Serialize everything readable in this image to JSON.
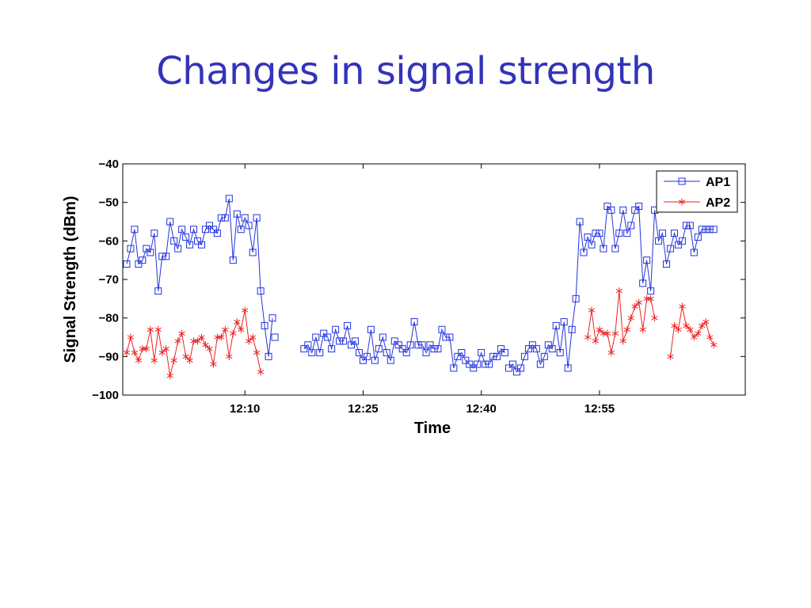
{
  "slide": {
    "title": "Changes in signal strength"
  },
  "chart_data": {
    "type": "line",
    "title": "",
    "xlabel": "Time",
    "ylabel": "Signal Strength (dBm)",
    "xlim": [
      0,
      79
    ],
    "ylim": [
      -100,
      -40
    ],
    "yticks": [
      -40,
      -50,
      -60,
      -70,
      -80,
      -90,
      -100
    ],
    "ytick_labels": [
      "−40",
      "−50",
      "−60",
      "−70",
      "−80",
      "−90",
      "−100"
    ],
    "xticks": [
      {
        "label": "12:10",
        "at": 15.5
      },
      {
        "label": "12:25",
        "at": 30.5
      },
      {
        "label": "12:40",
        "at": 45.5
      },
      {
        "label": "12:55",
        "at": 60.5
      }
    ],
    "grid": false,
    "legend": "top-right",
    "series": [
      {
        "name": "AP1",
        "color": "#2233dd",
        "marker": "square",
        "segments": [
          {
            "x": [
              0.5,
              1,
              1.5,
              2,
              2.5,
              3,
              3.5,
              4,
              4.5,
              5,
              5.5,
              6,
              6.5,
              7,
              7.5,
              8,
              8.5,
              9,
              9.5,
              10,
              10.5,
              11,
              11.5,
              12,
              12.5,
              13,
              13.5,
              14,
              14.5,
              15,
              15.5,
              16,
              16.5,
              17,
              17.5,
              18,
              18.5,
              19
            ],
            "y": [
              -66,
              -62,
              -57,
              -66,
              -65,
              -62,
              -63,
              -58,
              -73,
              -64,
              -64,
              -55,
              -60,
              -62,
              -57,
              -59,
              -61,
              -57,
              -60,
              -61,
              -57,
              -56,
              -57,
              -58,
              -54,
              -54,
              -49,
              -65,
              -53,
              -57,
              -54,
              -56,
              -63,
              -54,
              -73,
              -82,
              -90,
              -80
            ]
          },
          {
            "x": [
              19.3
            ],
            "y": [
              -85
            ]
          },
          {
            "x": [
              23,
              23.5,
              24,
              24.5,
              25,
              25.5,
              26,
              26.5,
              27,
              27.5,
              28,
              28.5,
              29,
              29.5,
              30,
              30.5,
              31,
              31.5,
              32,
              32.5,
              33,
              33.5,
              34,
              34.5,
              35,
              35.5,
              36,
              36.5,
              37,
              37.5,
              38,
              38.5,
              39,
              39.5,
              40,
              40.5,
              41,
              41.5,
              42,
              42.5,
              43,
              43.5,
              44,
              44.5,
              45,
              45.5,
              46,
              46.5,
              47,
              47.5,
              48,
              48.5
            ],
            "y": [
              -88,
              -87,
              -89,
              -85,
              -89,
              -84,
              -85,
              -88,
              -83,
              -86,
              -86,
              -82,
              -87,
              -86,
              -89,
              -91,
              -90,
              -83,
              -91,
              -88,
              -85,
              -89,
              -91,
              -86,
              -87,
              -88,
              -89,
              -87,
              -81,
              -87,
              -87,
              -89,
              -87,
              -88,
              -88,
              -83,
              -85,
              -85,
              -93,
              -90,
              -89,
              -91,
              -92,
              -93,
              -92,
              -89,
              -92,
              -92,
              -90,
              -90,
              -88,
              -89
            ]
          },
          {
            "x": [
              49,
              49.5,
              50,
              50.5,
              51,
              51.5,
              52,
              52.5,
              53,
              53.5,
              54,
              54.5,
              55,
              55.5,
              56,
              56.5,
              57,
              57.5,
              58,
              58.5,
              59,
              59.5,
              60,
              60.5,
              61,
              61.5,
              62,
              62.5,
              63,
              63.5,
              64,
              64.5,
              65,
              65.5,
              66,
              66.5,
              67,
              67.5,
              68,
              68.5,
              69,
              69.5,
              70,
              70.5,
              71,
              71.5,
              72,
              72.5,
              73,
              73.5,
              74,
              74.5,
              75
            ],
            "y": [
              -93,
              -92,
              -94,
              -93,
              -90,
              -88,
              -87,
              -88,
              -92,
              -90,
              -87,
              -88,
              -82,
              -89,
              -81,
              -93,
              -83,
              -75,
              -55,
              -63,
              -59,
              -61,
              -58,
              -58,
              -62,
              -51,
              -52,
              -62,
              -58,
              -52,
              -58,
              -56,
              -52,
              -51,
              -71,
              -65,
              -73,
              -52,
              -60,
              -58,
              -66,
              -62,
              -58,
              -61,
              -60,
              -56,
              -56,
              -63,
              -59,
              -57,
              -57,
              -57,
              -57
            ]
          }
        ]
      },
      {
        "name": "AP2",
        "color": "#ee2222",
        "marker": "star",
        "segments": [
          {
            "x": [
              0.5,
              1,
              1.5,
              2,
              2.5,
              3,
              3.5,
              4,
              4.5,
              5,
              5.5,
              6,
              6.5,
              7,
              7.5,
              8,
              8.5,
              9,
              9.5,
              10,
              10.5,
              11,
              11.5,
              12,
              12.5,
              13,
              13.5,
              14,
              14.5,
              15,
              15.5,
              16,
              16.5,
              17,
              17.5
            ],
            "y": [
              -89,
              -85,
              -89,
              -91,
              -88,
              -88,
              -83,
              -91,
              -83,
              -89,
              -88,
              -95,
              -91,
              -86,
              -84,
              -90,
              -91,
              -86,
              -86,
              -85,
              -87,
              -88,
              -92,
              -85,
              -85,
              -83,
              -90,
              -84,
              -81,
              -83,
              -78,
              -86,
              -85,
              -89,
              -94
            ]
          },
          {
            "x": [
              59,
              59.5,
              60,
              60.5,
              61,
              61.5,
              62,
              62.5,
              63,
              63.5,
              64,
              64.5,
              65,
              65.5,
              66,
              66.5,
              67,
              67.5
            ],
            "y": [
              -85,
              -78,
              -86,
              -83,
              -84,
              -84,
              -89,
              -84,
              -73,
              -86,
              -83,
              -80,
              -77,
              -76,
              -83,
              -75,
              -75,
              -80
            ]
          },
          {
            "x": [
              69.5,
              70,
              70.5,
              71,
              71.5,
              72,
              72.5,
              73,
              73.5,
              74,
              74.5,
              75
            ],
            "y": [
              -90,
              -82,
              -83,
              -77,
              -82,
              -83,
              -85,
              -84,
              -82,
              -81,
              -85,
              -87
            ]
          }
        ]
      }
    ]
  }
}
